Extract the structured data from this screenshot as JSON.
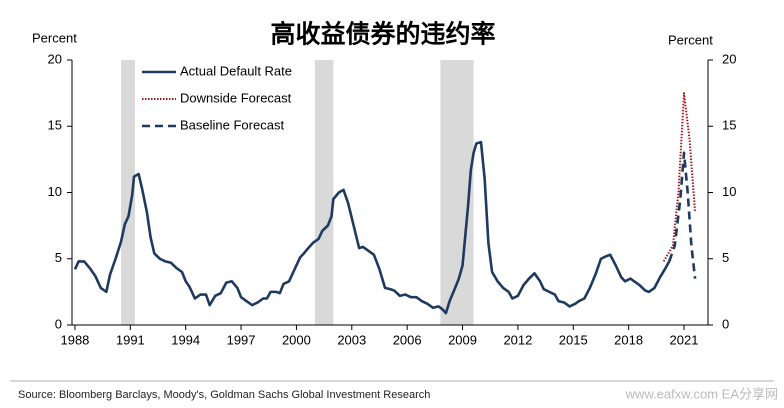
{
  "chart_data": {
    "type": "line",
    "title": "高收益债券的违约率",
    "y_label": "Percent",
    "y2_label": "Percent",
    "source": "Source: Bloomberg Barclays, Moody's, Goldman Sachs Global Investment Research",
    "watermark": "www.eafxw.com  EA分享网",
    "xlim": [
      1987.84,
      2022.3
    ],
    "xticks": [
      1988,
      1991,
      1994,
      1997,
      2000,
      2003,
      2006,
      2009,
      2012,
      2015,
      2018,
      2021
    ],
    "ylim": [
      0,
      20
    ],
    "yticks": [
      0,
      5,
      10,
      15,
      20
    ],
    "y2lim": [
      0,
      20
    ],
    "y2ticks": [
      0,
      5,
      10,
      15,
      20
    ],
    "legend": "upper left",
    "shaded_color": "#d9d9d9",
    "shaded_periods": [
      [
        1990.5,
        1991.25
      ],
      [
        2001.0,
        2002.0
      ],
      [
        2007.8,
        2009.6
      ]
    ],
    "series": [
      {
        "name": "Actual Default Rate",
        "color": "#1f3a5f",
        "style": "solid",
        "x": [
          1988,
          1988.2,
          1988.5,
          1988.8,
          1989.1,
          1989.4,
          1989.7,
          1989.9,
          1990.2,
          1990.5,
          1990.7,
          1990.9,
          1991.1,
          1991.2,
          1991.45,
          1991.65,
          1991.9,
          1992.1,
          1992.3,
          1992.6,
          1992.9,
          1993.2,
          1993.5,
          1993.8,
          1994.0,
          1994.2,
          1994.5,
          1994.8,
          1995.1,
          1995.3,
          1995.6,
          1995.9,
          1996.2,
          1996.5,
          1996.8,
          1997.0,
          1997.3,
          1997.6,
          1997.9,
          1998.2,
          1998.4,
          1998.6,
          1998.9,
          1999.1,
          1999.3,
          1999.6,
          1999.9,
          2000.2,
          2000.4,
          2000.7,
          2000.9,
          2001.2,
          2001.4,
          2001.7,
          2001.9,
          2002.0,
          2002.3,
          2002.55,
          2002.8,
          2003.1,
          2003.4,
          2003.6,
          2003.9,
          2004.2,
          2004.5,
          2004.8,
          2005.1,
          2005.3,
          2005.6,
          2005.9,
          2006.2,
          2006.5,
          2006.8,
          2007.1,
          2007.4,
          2007.7,
          2007.9,
          2008.1,
          2008.3,
          2008.6,
          2008.8,
          2009.0,
          2009.2,
          2009.3,
          2009.45,
          2009.6,
          2009.75,
          2010.0,
          2010.2,
          2010.4,
          2010.6,
          2010.9,
          2011.2,
          2011.5,
          2011.7,
          2012.0,
          2012.3,
          2012.6,
          2012.9,
          2013.2,
          2013.4,
          2013.7,
          2014.0,
          2014.2,
          2014.5,
          2014.8,
          2015.1,
          2015.3,
          2015.6,
          2015.9,
          2016.2,
          2016.5,
          2016.8,
          2017.0,
          2017.3,
          2017.6,
          2017.8,
          2018.1,
          2018.3,
          2018.6,
          2018.9,
          2019.1,
          2019.4,
          2019.7,
          2020.0,
          2020.2
        ],
        "values": [
          4.2,
          4.8,
          4.8,
          4.3,
          3.7,
          2.8,
          2.5,
          3.8,
          5.0,
          6.3,
          7.6,
          8.2,
          9.8,
          11.2,
          11.4,
          10.2,
          8.5,
          6.6,
          5.4,
          5.0,
          4.8,
          4.7,
          4.3,
          4.0,
          3.3,
          2.9,
          2.0,
          2.3,
          2.3,
          1.5,
          2.2,
          2.4,
          3.2,
          3.3,
          2.8,
          2.1,
          1.8,
          1.5,
          1.7,
          2.0,
          2.0,
          2.5,
          2.5,
          2.4,
          3.1,
          3.3,
          4.2,
          5.1,
          5.4,
          5.9,
          6.2,
          6.5,
          7.1,
          7.5,
          8.2,
          9.5,
          10.0,
          10.2,
          9.2,
          7.5,
          5.8,
          5.9,
          5.6,
          5.3,
          4.2,
          2.8,
          2.7,
          2.6,
          2.2,
          2.3,
          2.1,
          2.1,
          1.8,
          1.6,
          1.3,
          1.4,
          1.2,
          0.9,
          1.8,
          2.8,
          3.5,
          4.5,
          7.5,
          9.0,
          11.7,
          13.0,
          13.7,
          13.8,
          11.0,
          6.2,
          4.0,
          3.3,
          2.8,
          2.5,
          2.0,
          2.2,
          3.0,
          3.5,
          3.9,
          3.3,
          2.7,
          2.5,
          2.3,
          1.8,
          1.7,
          1.4,
          1.6,
          1.8,
          2.0,
          2.8,
          3.8,
          5.0,
          5.2,
          5.3,
          4.5,
          3.6,
          3.3,
          3.5,
          3.3,
          3.0,
          2.6,
          2.5,
          2.8,
          3.6,
          4.3,
          4.8
        ]
      },
      {
        "name": "Downside Forecast",
        "color": "#a3161a",
        "style": "dotted",
        "x": [
          2019.9,
          2020.4,
          2020.7,
          2021.0,
          2021.3,
          2021.6
        ],
        "values": [
          4.8,
          6.0,
          10.0,
          17.5,
          14.0,
          8.5
        ]
      },
      {
        "name": "Baseline Forecast",
        "color": "#1f3a5f",
        "style": "dashed",
        "x": [
          2020.2,
          2020.5,
          2020.8,
          2021.0,
          2021.2,
          2021.4,
          2021.6
        ],
        "values": [
          4.8,
          6.0,
          9.5,
          13.0,
          10.0,
          6.0,
          3.5
        ]
      }
    ]
  }
}
